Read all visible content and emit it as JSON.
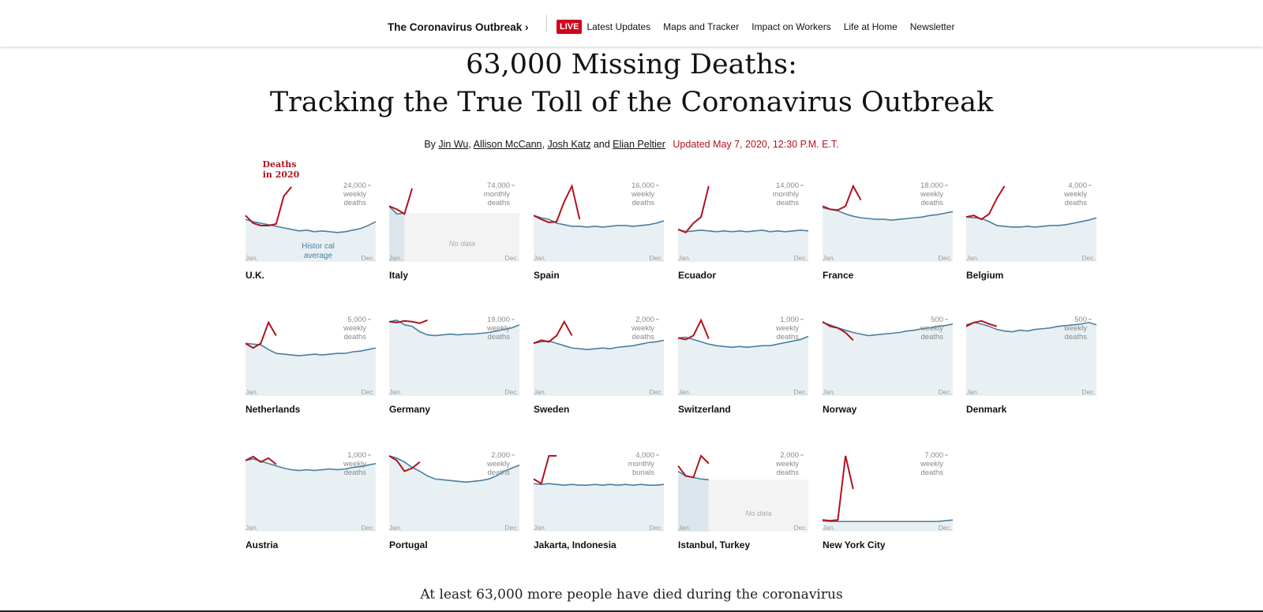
{
  "nav": {
    "section": "The Coronavirus Outbreak ›",
    "live": "LIVE",
    "links": [
      "Latest Updates",
      "Maps and Tracker",
      "Impact on Workers",
      "Life at Home",
      "Newsletter"
    ]
  },
  "headline": {
    "line1": "63,000 Missing Deaths:",
    "line2": "Tracking the True Toll of the Coronavirus Outbreak"
  },
  "byline": {
    "by": "By",
    "authors": [
      "Jin Wu",
      "Allison McCann",
      "Josh Katz",
      "Elian Peltier"
    ],
    "and": "and",
    "updated": "Updated May 7, 2020, 12:30 P.M. E.T."
  },
  "annotations": {
    "deaths_label_1": "Deaths",
    "deaths_label_2": "in 2020",
    "hist_label_1": "Histor cal",
    "hist_label_2": "average"
  },
  "colors": {
    "current": "#b3121e",
    "historical": "#4a7fa0",
    "fill": "#e8f0f4",
    "nodata": "#f3f3f3"
  },
  "chart_data": [
    {
      "country": "U.K.",
      "type": "line",
      "scale": [
        "24,000",
        "weekly",
        "deaths"
      ],
      "x_range": [
        "Jan.",
        "Dec."
      ],
      "hist": [
        0.55,
        0.52,
        0.5,
        0.48,
        0.46,
        0.44,
        0.42,
        0.4,
        0.41,
        0.39,
        0.4,
        0.39,
        0.38,
        0.39,
        0.41,
        0.43,
        0.47,
        0.52
      ],
      "current": [
        0.6,
        0.5,
        0.47,
        0.47,
        0.49,
        0.85,
        0.97
      ]
    },
    {
      "country": "Italy",
      "type": "line",
      "scale": [
        "74,000",
        "monthly",
        "deaths"
      ],
      "x_range": [
        "Jan.",
        "Dec."
      ],
      "hist": [
        0.72,
        0.62,
        0.63
      ],
      "current": [
        0.72,
        0.68,
        0.62,
        0.95
      ],
      "nodata": true,
      "nodata_label": "No data"
    },
    {
      "country": "Spain",
      "type": "line",
      "scale": [
        "16,000",
        "weekly",
        "deaths"
      ],
      "x_range": [
        "Jan.",
        "Dec."
      ],
      "hist": [
        0.6,
        0.57,
        0.55,
        0.5,
        0.48,
        0.46,
        0.46,
        0.45,
        0.46,
        0.45,
        0.46,
        0.47,
        0.47,
        0.46,
        0.47,
        0.48,
        0.5,
        0.53
      ],
      "current": [
        0.6,
        0.55,
        0.51,
        0.52,
        0.78,
        0.98,
        0.55
      ]
    },
    {
      "country": "Ecuador",
      "type": "line",
      "scale": [
        "14,000",
        "monthly",
        "deaths"
      ],
      "x_range": [
        "Jan.",
        "Dec."
      ],
      "hist": [
        0.42,
        0.39,
        0.4,
        0.41,
        0.4,
        0.39,
        0.4,
        0.39,
        0.4,
        0.39,
        0.4,
        0.41,
        0.39,
        0.4,
        0.39,
        0.4,
        0.41,
        0.4
      ],
      "current": [
        0.42,
        0.38,
        0.5,
        0.58,
        0.98
      ]
    },
    {
      "country": "France",
      "type": "line",
      "scale": [
        "18,000",
        "weekly",
        "deaths"
      ],
      "x_range": [
        "Jan.",
        "Dec."
      ],
      "hist": [
        0.7,
        0.68,
        0.66,
        0.62,
        0.59,
        0.57,
        0.56,
        0.55,
        0.55,
        0.54,
        0.55,
        0.56,
        0.57,
        0.58,
        0.6,
        0.61,
        0.63,
        0.65
      ],
      "current": [
        0.72,
        0.68,
        0.67,
        0.72,
        0.98,
        0.8
      ]
    },
    {
      "country": "Belgium",
      "type": "line",
      "scale": [
        "4,000",
        "weekly",
        "deaths"
      ],
      "x_range": [
        "Jan.",
        "Dec."
      ],
      "hist": [
        0.58,
        0.57,
        0.56,
        0.52,
        0.47,
        0.46,
        0.45,
        0.45,
        0.46,
        0.45,
        0.46,
        0.47,
        0.47,
        0.48,
        0.5,
        0.52,
        0.54,
        0.57
      ],
      "current": [
        0.58,
        0.6,
        0.55,
        0.62,
        0.82,
        0.98
      ]
    },
    {
      "country": "Netherlands",
      "type": "line",
      "scale": [
        "5,000",
        "weekly",
        "deaths"
      ],
      "x_range": [
        "Jan.",
        "Dec."
      ],
      "hist": [
        0.68,
        0.67,
        0.66,
        0.6,
        0.55,
        0.54,
        0.53,
        0.52,
        0.53,
        0.54,
        0.53,
        0.54,
        0.55,
        0.55,
        0.57,
        0.58,
        0.6,
        0.62
      ],
      "current": [
        0.68,
        0.62,
        0.68,
        0.95,
        0.78
      ]
    },
    {
      "country": "Germany",
      "type": "line",
      "scale": [
        "19,000",
        "weekly",
        "deaths"
      ],
      "x_range": [
        "Jan.",
        "Dec."
      ],
      "hist": [
        0.96,
        0.98,
        0.92,
        0.9,
        0.83,
        0.79,
        0.78,
        0.79,
        0.8,
        0.79,
        0.8,
        0.8,
        0.81,
        0.82,
        0.84,
        0.86,
        0.88,
        0.92
      ],
      "current": [
        0.96,
        0.95,
        0.97,
        0.96,
        0.94,
        0.98
      ]
    },
    {
      "country": "Sweden",
      "type": "line",
      "scale": [
        "2,000",
        "weekly",
        "deaths"
      ],
      "x_range": [
        "Jan.",
        "Dec."
      ],
      "hist": [
        0.68,
        0.7,
        0.71,
        0.68,
        0.65,
        0.62,
        0.61,
        0.6,
        0.61,
        0.62,
        0.61,
        0.63,
        0.64,
        0.65,
        0.67,
        0.69,
        0.7,
        0.72
      ],
      "current": [
        0.68,
        0.72,
        0.7,
        0.78,
        0.96,
        0.78
      ]
    },
    {
      "country": "Switzerland",
      "type": "line",
      "scale": [
        "1,000",
        "weekly",
        "deaths"
      ],
      "x_range": [
        "Jan.",
        "Dec."
      ],
      "hist": [
        0.75,
        0.76,
        0.73,
        0.7,
        0.67,
        0.65,
        0.64,
        0.63,
        0.64,
        0.63,
        0.64,
        0.65,
        0.65,
        0.67,
        0.69,
        0.71,
        0.73,
        0.77
      ],
      "current": [
        0.75,
        0.73,
        0.78,
        0.98,
        0.74
      ]
    },
    {
      "country": "Norway",
      "type": "line",
      "scale": [
        "500",
        "weekly",
        "deaths"
      ],
      "x_range": [
        "Jan.",
        "Dec."
      ],
      "hist": [
        0.95,
        0.92,
        0.88,
        0.85,
        0.82,
        0.8,
        0.78,
        0.79,
        0.8,
        0.81,
        0.82,
        0.84,
        0.85,
        0.87,
        0.88,
        0.9,
        0.91,
        0.93
      ],
      "current": [
        0.96,
        0.9,
        0.88,
        0.82,
        0.72
      ]
    },
    {
      "country": "Denmark",
      "type": "line",
      "scale": [
        "500",
        "weekly",
        "deaths"
      ],
      "x_range": [
        "Jan.",
        "Dec."
      ],
      "hist": [
        0.92,
        0.95,
        0.93,
        0.9,
        0.86,
        0.84,
        0.83,
        0.85,
        0.84,
        0.86,
        0.87,
        0.88,
        0.9,
        0.91,
        0.92,
        0.93,
        0.95,
        0.92
      ],
      "current": [
        0.9,
        0.95,
        0.97,
        0.93,
        0.9
      ]
    },
    {
      "country": "Austria",
      "type": "line",
      "scale": [
        "1,000",
        "weekly",
        "deaths"
      ],
      "x_range": [
        "Jan.",
        "Dec."
      ],
      "hist": [
        0.92,
        0.94,
        0.91,
        0.88,
        0.85,
        0.82,
        0.8,
        0.79,
        0.8,
        0.79,
        0.8,
        0.81,
        0.8,
        0.81,
        0.83,
        0.84,
        0.86,
        0.88
      ],
      "current": [
        0.92,
        0.97,
        0.9,
        0.95,
        0.87
      ]
    },
    {
      "country": "Portugal",
      "type": "line",
      "scale": [
        "2,000",
        "weekly",
        "deaths"
      ],
      "x_range": [
        "Jan.",
        "Dec."
      ],
      "hist": [
        0.98,
        0.95,
        0.9,
        0.83,
        0.78,
        0.72,
        0.68,
        0.67,
        0.66,
        0.65,
        0.64,
        0.65,
        0.66,
        0.68,
        0.72,
        0.78,
        0.82,
        0.86
      ],
      "current": [
        0.98,
        0.92,
        0.78,
        0.82,
        0.9
      ]
    },
    {
      "country": "Jakarta, Indonesia",
      "type": "line",
      "scale": [
        "4,000",
        "monthly",
        "burials"
      ],
      "x_range": [
        "Jan.",
        "Dec."
      ],
      "hist": [
        0.62,
        0.61,
        0.62,
        0.61,
        0.6,
        0.61,
        0.6,
        0.6,
        0.61,
        0.6,
        0.61,
        0.6,
        0.61,
        0.6,
        0.61,
        0.6,
        0.6,
        0.61
      ],
      "current": [
        0.68,
        0.62,
        0.98,
        0.98
      ]
    },
    {
      "country": "Istanbul, Turkey",
      "type": "line",
      "scale": [
        "2,000",
        "weekly",
        "deaths"
      ],
      "x_range": [
        "Jan.",
        "Dec."
      ],
      "hist": [
        0.78,
        0.72,
        0.7,
        0.68,
        0.67
      ],
      "current": [
        0.85,
        0.72,
        0.7,
        0.98,
        0.88
      ],
      "nodata": true,
      "nodata_label": "No data"
    },
    {
      "country": "New York City",
      "type": "line",
      "scale": [
        "7,000",
        "weekly",
        "deaths"
      ],
      "x_range": [
        "Jan.",
        "Dec."
      ],
      "hist": [
        0.14,
        0.13,
        0.13,
        0.13,
        0.13,
        0.13,
        0.13,
        0.13,
        0.13,
        0.13,
        0.13,
        0.13,
        0.13,
        0.13,
        0.13,
        0.13,
        0.14,
        0.15
      ],
      "current": [
        0.15,
        0.14,
        0.15,
        0.98,
        0.55
      ]
    }
  ],
  "intro": "At least 63,000 more people have died during the coronavirus"
}
